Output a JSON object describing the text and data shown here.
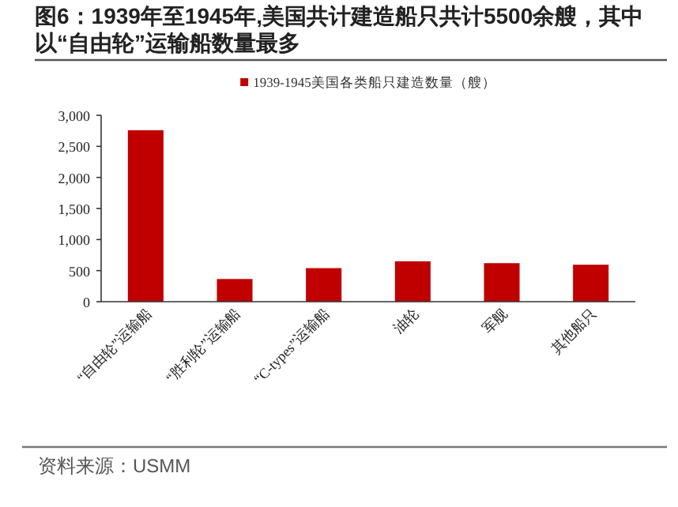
{
  "chart_data": {
    "type": "bar",
    "title": "图6：1939年至1945年,美国共计建造船只共计5500余艘，其中以“自由轮”运输船数量最多",
    "categories": [
      "“自由轮”运输船",
      "“胜利轮”运输船",
      "“C-types”运输船",
      "油轮",
      "军舰",
      "其他船只"
    ],
    "series": [
      {
        "name": "1939-1945美国各类船只建造数量（艘）",
        "color": "#c00000",
        "values": [
          2760,
          365,
          540,
          650,
          620,
          595
        ]
      }
    ],
    "ylim": [
      0,
      3000
    ],
    "yticks": [
      0,
      500,
      {
        "value": 1000,
        "label": "1,000"
      },
      {
        "value": 1500,
        "label": "1,500"
      },
      {
        "value": 2000,
        "label": "2,000"
      },
      {
        "value": 2500,
        "label": "2,500"
      },
      {
        "value": 3000,
        "label": "3,000"
      }
    ],
    "legend": "top",
    "annotations": [
      "资料来源：USMM"
    ]
  }
}
